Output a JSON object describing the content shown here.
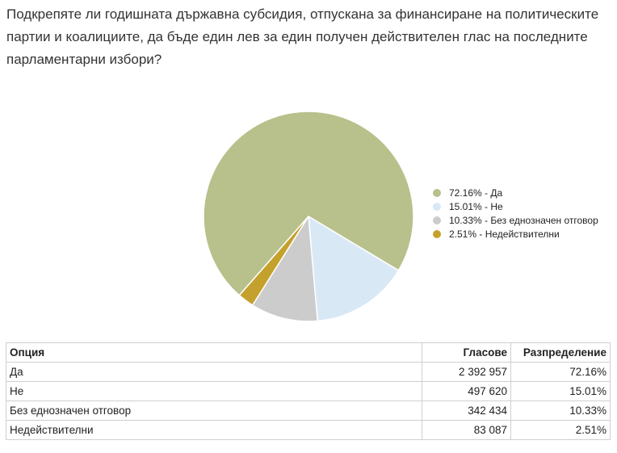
{
  "question": "Подкрепяте ли годишната държавна субсидия, отпускана за финансиране на политическите партии и коалициите, да бъде един лев за един получен действителен глас на последните парламентарни избори?",
  "chart_data": {
    "type": "pie",
    "slices": [
      {
        "label": "Да",
        "legend": "72.16% - Да",
        "value": 72.16,
        "color": "#b8c08b"
      },
      {
        "label": "Не",
        "legend": "15.01% - Не",
        "value": 15.01,
        "color": "#d9e8f5"
      },
      {
        "label": "Без еднозначен отговор",
        "legend": "10.33% - Без еднозначен отговор",
        "value": 10.33,
        "color": "#cccccc"
      },
      {
        "label": "Недействителни",
        "legend": "2.51% - Недействителни",
        "value": 2.51,
        "color": "#c4a12d"
      }
    ]
  },
  "table": {
    "headers": {
      "option": "Опция",
      "votes": "Гласове",
      "distribution": "Разпределение"
    },
    "rows": [
      {
        "option": "Да",
        "votes": "2 392 957",
        "distribution": "72.16%"
      },
      {
        "option": "Не",
        "votes": "497 620",
        "distribution": "15.01%"
      },
      {
        "option": "Без еднозначен отговор",
        "votes": "342 434",
        "distribution": "10.33%"
      },
      {
        "option": "Недействителни",
        "votes": "83 087",
        "distribution": "2.51%"
      }
    ]
  }
}
